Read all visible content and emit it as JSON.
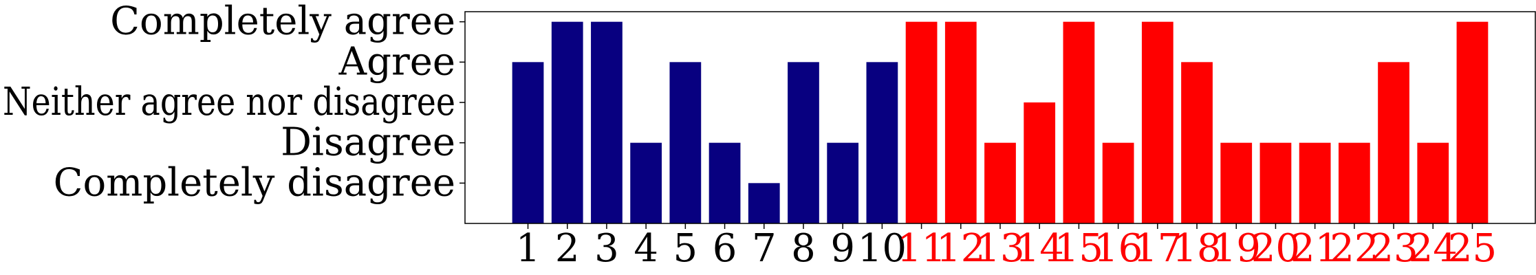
{
  "chart_data": {
    "type": "bar",
    "title": "",
    "xlabel": "",
    "ylabel": "",
    "y_tick_labels": [
      "Completely disagree",
      "Disagree",
      "Neither agree nor disagree",
      "Agree",
      "Completely agree"
    ],
    "y_tick_values": [
      1,
      2,
      3,
      4,
      5
    ],
    "ylim": [
      0,
      5.25
    ],
    "xlim": [
      -0.6,
      26.6
    ],
    "categories": [
      "1",
      "2",
      "3",
      "4",
      "5",
      "6",
      "7",
      "8",
      "9",
      "10",
      "11",
      "12",
      "13",
      "14",
      "15",
      "16",
      "17",
      "18",
      "19",
      "20",
      "21",
      "22",
      "23",
      "24",
      "25"
    ],
    "values": [
      4,
      5,
      5,
      2,
      4,
      2,
      1,
      4,
      2,
      4,
      5,
      5,
      2,
      3,
      5,
      2,
      5,
      4,
      2,
      2,
      2,
      2,
      4,
      2,
      5
    ],
    "bar_colors": [
      "#080080",
      "#080080",
      "#080080",
      "#080080",
      "#080080",
      "#080080",
      "#080080",
      "#080080",
      "#080080",
      "#080080",
      "#ff0000",
      "#ff0000",
      "#ff0000",
      "#ff0000",
      "#ff0000",
      "#ff0000",
      "#ff0000",
      "#ff0000",
      "#ff0000",
      "#ff0000",
      "#ff0000",
      "#ff0000",
      "#ff0000",
      "#ff0000",
      "#ff0000"
    ],
    "tick_label_colors": [
      "#000000",
      "#000000",
      "#000000",
      "#000000",
      "#000000",
      "#000000",
      "#000000",
      "#000000",
      "#000000",
      "#000000",
      "#ff0000",
      "#ff0000",
      "#ff0000",
      "#ff0000",
      "#ff0000",
      "#ff0000",
      "#ff0000",
      "#ff0000",
      "#ff0000",
      "#ff0000",
      "#ff0000",
      "#ff0000",
      "#ff0000",
      "#ff0000",
      "#ff0000"
    ],
    "grid": false,
    "legend": "none"
  }
}
